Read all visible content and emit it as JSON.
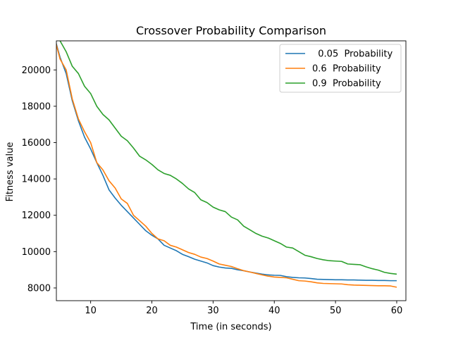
{
  "chart_data": {
    "type": "line",
    "title": "Crossover Probability Comparison",
    "xlabel": "Time (in seconds)",
    "ylabel": "Fitness value",
    "xlim": [
      4.4,
      61.5
    ],
    "ylim": [
      7300,
      21600
    ],
    "xticks": [
      10,
      20,
      30,
      40,
      50,
      60
    ],
    "yticks": [
      8000,
      10000,
      12000,
      14000,
      16000,
      18000,
      20000
    ],
    "grid": false,
    "legend_position": "upper-right",
    "series": [
      {
        "name": "  0.05  Probability",
        "color": "#1f77b4",
        "x": [
          4,
          5,
          6,
          7,
          8,
          9,
          10,
          11,
          12,
          13,
          14,
          15,
          16,
          17,
          18,
          19,
          20,
          21,
          22,
          23,
          24,
          25,
          26,
          27,
          28,
          29,
          30,
          31,
          32,
          33,
          34,
          35,
          36,
          37,
          38,
          39,
          40,
          41,
          42,
          43,
          44,
          45,
          46,
          47,
          48,
          49,
          50,
          51,
          52,
          53,
          54,
          55,
          56,
          57,
          58,
          59,
          60
        ],
        "y": [
          21900,
          20700,
          19800,
          18300,
          17200,
          16300,
          15650,
          14900,
          14200,
          13400,
          12950,
          12550,
          12200,
          11850,
          11500,
          11150,
          10900,
          10700,
          10350,
          10200,
          10050,
          9850,
          9720,
          9580,
          9480,
          9380,
          9230,
          9150,
          9100,
          9080,
          9000,
          8950,
          8880,
          8820,
          8760,
          8720,
          8700,
          8690,
          8620,
          8580,
          8560,
          8550,
          8520,
          8480,
          8470,
          8460,
          8450,
          8450,
          8440,
          8440,
          8430,
          8420,
          8420,
          8410,
          8410,
          8400,
          8400
        ]
      },
      {
        "name": "0.6  Probability",
        "color": "#ff7f0e",
        "x": [
          4,
          5,
          6,
          7,
          8,
          9,
          10,
          11,
          12,
          13,
          14,
          15,
          16,
          17,
          18,
          19,
          20,
          21,
          22,
          23,
          24,
          25,
          26,
          27,
          28,
          29,
          30,
          31,
          32,
          33,
          34,
          35,
          36,
          37,
          38,
          39,
          40,
          41,
          42,
          43,
          44,
          45,
          46,
          47,
          48,
          49,
          50,
          51,
          52,
          53,
          54,
          55,
          56,
          57,
          58,
          59,
          60
        ],
        "y": [
          21900,
          20600,
          20000,
          18400,
          17300,
          16600,
          16000,
          14900,
          14500,
          13900,
          13500,
          12900,
          12650,
          12000,
          11700,
          11400,
          11000,
          10700,
          10600,
          10350,
          10250,
          10100,
          9950,
          9850,
          9700,
          9620,
          9480,
          9320,
          9250,
          9180,
          9060,
          8950,
          8880,
          8800,
          8720,
          8650,
          8600,
          8580,
          8560,
          8480,
          8400,
          8380,
          8340,
          8280,
          8250,
          8240,
          8230,
          8220,
          8180,
          8160,
          8150,
          8140,
          8130,
          8120,
          8120,
          8110,
          8040
        ]
      },
      {
        "name": "0.9  Probability",
        "color": "#2ca02c",
        "x": [
          4,
          5,
          6,
          7,
          8,
          9,
          10,
          11,
          12,
          13,
          14,
          15,
          16,
          17,
          18,
          19,
          20,
          21,
          22,
          23,
          24,
          25,
          26,
          27,
          28,
          29,
          30,
          31,
          32,
          33,
          34,
          35,
          36,
          37,
          38,
          39,
          40,
          41,
          42,
          43,
          44,
          45,
          46,
          47,
          48,
          49,
          50,
          51,
          52,
          53,
          54,
          55,
          56,
          57,
          58,
          59,
          60
        ],
        "y": [
          22000,
          21600,
          21000,
          20200,
          19800,
          19100,
          18700,
          18000,
          17550,
          17250,
          16800,
          16350,
          16100,
          15700,
          15250,
          15050,
          14800,
          14500,
          14300,
          14200,
          14000,
          13750,
          13450,
          13250,
          12850,
          12700,
          12450,
          12300,
          12200,
          11900,
          11750,
          11400,
          11200,
          11000,
          10850,
          10750,
          10600,
          10450,
          10250,
          10200,
          10000,
          9800,
          9720,
          9620,
          9550,
          9500,
          9480,
          9460,
          9320,
          9300,
          9280,
          9160,
          9060,
          8980,
          8860,
          8800,
          8760
        ]
      }
    ]
  }
}
